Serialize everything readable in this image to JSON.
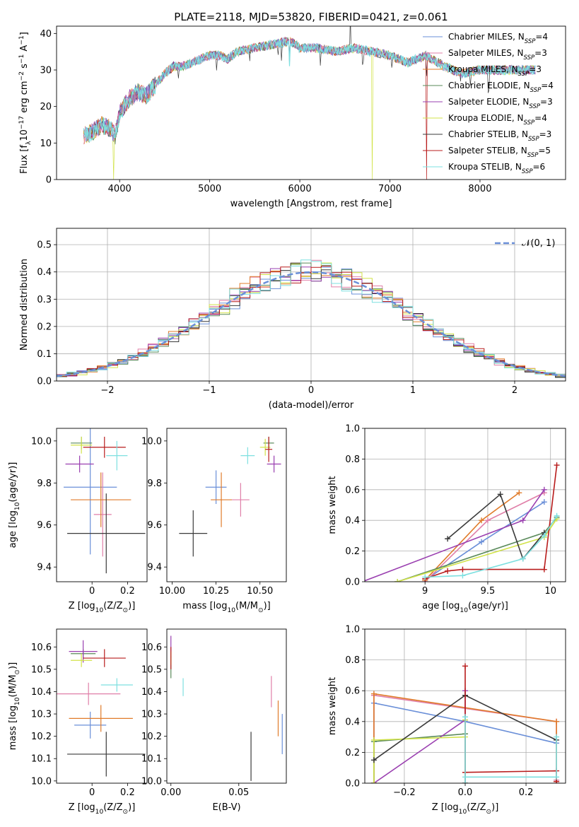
{
  "title": "PLATE=2118, MJD=53820, FIBERID=0421, z=0.061",
  "colors": {
    "Chabrier MILES": "#6a8fd8",
    "Salpeter MILES": "#e07fa8",
    "Kroupa MILES": "#e07b2a",
    "Chabrier ELODIE": "#5a8a5a",
    "Salpeter ELODIE": "#9a3fb0",
    "Kroupa ELODIE": "#d2e34a",
    "Chabrier STELIB": "#3a3a3a",
    "Salpeter STELIB": "#b81c1c",
    "Kroupa STELIB": "#7ee0e0"
  },
  "chart_data": [
    {
      "id": "spectrum",
      "type": "line",
      "xlabel": "wavelength [Angstrom, rest frame]",
      "ylabel_parts": [
        "Flux [f",
        "λ",
        "10",
        "−17",
        " erg cm",
        "−2",
        " s",
        "−1",
        " A",
        "−1",
        "]"
      ],
      "xlim": [
        3300,
        8950
      ],
      "ylim": [
        0,
        42
      ],
      "xticks": [
        4000,
        5000,
        6000,
        7000,
        8000
      ],
      "yticks": [
        0,
        10,
        20,
        30,
        40
      ],
      "legend": [
        {
          "name": "Chabrier MILES",
          "base": "Chabrier MILES, N",
          "sub": "SSP",
          "tail": "=4"
        },
        {
          "name": "Salpeter MILES",
          "base": "Salpeter MILES, N",
          "sub": "SSP",
          "tail": "=3"
        },
        {
          "name": "Kroupa MILES",
          "base": "Kroupa MILES, N",
          "sub": "SSP",
          "tail": "=3"
        },
        {
          "name": "Chabrier ELODIE",
          "base": "Chabrier ELODIE, N",
          "sub": "SSP",
          "tail": "=4"
        },
        {
          "name": "Salpeter ELODIE",
          "base": "Salpeter ELODIE, N",
          "sub": "SSP",
          "tail": "=3"
        },
        {
          "name": "Kroupa ELODIE",
          "base": "Kroupa ELODIE, N",
          "sub": "SSP",
          "tail": "=4"
        },
        {
          "name": "Chabrier STELIB",
          "base": "Chabrier STELIB, N",
          "sub": "SSP",
          "tail": "=3"
        },
        {
          "name": "Salpeter STELIB",
          "base": "Salpeter STELIB, N",
          "sub": "SSP",
          "tail": "=5"
        },
        {
          "name": "Kroupa STELIB",
          "base": "Kroupa STELIB, N",
          "sub": "SSP",
          "tail": "=6"
        }
      ],
      "continuum": [
        [
          3600,
          12
        ],
        [
          3700,
          13
        ],
        [
          3800,
          15
        ],
        [
          3900,
          14
        ],
        [
          3950,
          12
        ],
        [
          4000,
          18
        ],
        [
          4100,
          22
        ],
        [
          4200,
          24
        ],
        [
          4300,
          23
        ],
        [
          4400,
          26
        ],
        [
          4500,
          29
        ],
        [
          4600,
          31
        ],
        [
          4700,
          31
        ],
        [
          4800,
          32
        ],
        [
          4900,
          33
        ],
        [
          5000,
          34
        ],
        [
          5100,
          34
        ],
        [
          5200,
          33
        ],
        [
          5300,
          35
        ],
        [
          5500,
          36
        ],
        [
          5700,
          37
        ],
        [
          5900,
          38
        ],
        [
          6000,
          36
        ],
        [
          6200,
          36
        ],
        [
          6400,
          35
        ],
        [
          6600,
          36
        ],
        [
          6800,
          35
        ],
        [
          7000,
          34
        ],
        [
          7200,
          32
        ],
        [
          7400,
          34
        ],
        [
          7600,
          31
        ],
        [
          7800,
          29
        ],
        [
          8000,
          30
        ],
        [
          8200,
          30
        ],
        [
          8400,
          30
        ],
        [
          8600,
          30
        ]
      ],
      "notes": [
        "narrow dips near 3930, 5890, 6800, 7400; emission spike near 6560"
      ]
    },
    {
      "id": "residuals",
      "type": "step",
      "xlabel": "(data-model)/error",
      "ylabel": "Normed distribution",
      "xlim": [
        -2.5,
        2.5
      ],
      "ylim": [
        0,
        0.56
      ],
      "xticks": [
        -2,
        -1,
        0,
        1,
        2
      ],
      "xtick_labels": [
        "−2",
        "−1",
        "0",
        "1",
        "2"
      ],
      "yticks": [
        0.0,
        0.1,
        0.2,
        0.3,
        0.4,
        0.5
      ],
      "legend": [
        {
          "name": "N(0,1)",
          "text": "𝒩(0, 1)",
          "style": "dashed"
        }
      ],
      "bin_width": 0.1,
      "reference": "gaussian mean 0 sigma 1"
    },
    {
      "id": "age_vs_Z",
      "type": "errorbar",
      "xlabel_parts": [
        "Z [log",
        "10",
        "(Z/Z",
        "⊙",
        ")]"
      ],
      "ylabel_parts": [
        "age  [log",
        "10",
        "(age/yr)]"
      ],
      "xlim": [
        -0.2,
        0.31
      ],
      "ylim": [
        9.33,
        10.06
      ],
      "xticks": [
        0.0,
        0.2
      ],
      "yticks": [
        9.4,
        9.6,
        9.8,
        10.0
      ],
      "points": [
        {
          "model": "Chabrier MILES",
          "x": -0.01,
          "xerr": 0.15,
          "y": 9.78,
          "yerr": 0.32
        },
        {
          "model": "Salpeter MILES",
          "x": 0.06,
          "xerr": 0.05,
          "y": 9.65,
          "yerr": 0.2
        },
        {
          "model": "Kroupa MILES",
          "x": 0.05,
          "xerr": 0.17,
          "y": 9.72,
          "yerr": 0.13
        },
        {
          "model": "Chabrier ELODIE",
          "x": -0.06,
          "xerr": 0.06,
          "y": 9.99,
          "yerr": 0.03
        },
        {
          "model": "Salpeter ELODIE",
          "x": -0.07,
          "xerr": 0.08,
          "y": 9.89,
          "yerr": 0.04
        },
        {
          "model": "Kroupa ELODIE",
          "x": -0.06,
          "xerr": 0.06,
          "y": 9.98,
          "yerr": 0.04
        },
        {
          "model": "Chabrier STELIB",
          "x": 0.08,
          "xerr": 0.22,
          "y": 9.56,
          "yerr": 0.19
        },
        {
          "model": "Salpeter STELIB",
          "x": 0.07,
          "xerr": 0.12,
          "y": 9.97,
          "yerr": 0.05
        },
        {
          "model": "Kroupa STELIB",
          "x": 0.14,
          "xerr": 0.06,
          "y": 9.93,
          "yerr": 0.07
        }
      ]
    },
    {
      "id": "age_vs_mass",
      "type": "errorbar",
      "xlabel_parts": [
        "mass [log",
        "10",
        "(M/M",
        "⊙",
        ")]"
      ],
      "xlim": [
        9.97,
        10.65
      ],
      "ylim": [
        9.33,
        10.06
      ],
      "xticks": [
        10.0,
        10.25,
        10.5
      ],
      "xtick_labels": [
        "10.00",
        "10.25",
        "10.50"
      ],
      "yticks": [
        9.4,
        9.6,
        9.8,
        10.0
      ],
      "points": [
        {
          "model": "Chabrier MILES",
          "x": 10.25,
          "xerr": 0.06,
          "y": 9.78,
          "yerr": 0.08
        },
        {
          "model": "Salpeter MILES",
          "x": 10.39,
          "xerr": 0.05,
          "y": 9.72,
          "yerr": 0.08
        },
        {
          "model": "Kroupa MILES",
          "x": 10.28,
          "xerr": 0.06,
          "y": 9.72,
          "yerr": 0.13
        },
        {
          "model": "Chabrier ELODIE",
          "x": 10.55,
          "xerr": 0.03,
          "y": 9.99,
          "yerr": 0.03
        },
        {
          "model": "Salpeter ELODIE",
          "x": 10.58,
          "xerr": 0.04,
          "y": 9.89,
          "yerr": 0.04
        },
        {
          "model": "Kroupa ELODIE",
          "x": 10.53,
          "xerr": 0.03,
          "y": 9.97,
          "yerr": 0.04
        },
        {
          "model": "Chabrier STELIB",
          "x": 10.12,
          "xerr": 0.08,
          "y": 9.56,
          "yerr": 0.11
        },
        {
          "model": "Salpeter STELIB",
          "x": 10.55,
          "xerr": 0.02,
          "y": 9.96,
          "yerr": 0.06
        },
        {
          "model": "Kroupa STELIB",
          "x": 10.43,
          "xerr": 0.04,
          "y": 9.93,
          "yerr": 0.04
        }
      ]
    },
    {
      "id": "mass_weight_vs_age",
      "type": "line",
      "xlabel_parts": [
        "age  [log",
        "10",
        "(age/yr)]"
      ],
      "ylabel": "mass weight",
      "xlim": [
        8.52,
        10.12
      ],
      "ylim": [
        0,
        1
      ],
      "xticks": [
        9.0,
        9.5,
        10.0
      ],
      "yticks": [
        0.0,
        0.2,
        0.4,
        0.6,
        0.8,
        1.0
      ],
      "series": [
        {
          "model": "Chabrier MILES",
          "points": [
            [
              9.0,
              0.01
            ],
            [
              9.45,
              0.26
            ],
            [
              9.95,
              0.52
            ]
          ]
        },
        {
          "model": "Salpeter MILES",
          "points": [
            [
              9.0,
              0.0
            ],
            [
              9.5,
              0.4
            ],
            [
              9.95,
              0.58
            ]
          ]
        },
        {
          "model": "Kroupa MILES",
          "points": [
            [
              9.0,
              0.01
            ],
            [
              9.45,
              0.4
            ],
            [
              9.75,
              0.58
            ]
          ]
        },
        {
          "model": "Chabrier ELODIE",
          "points": [
            [
              8.78,
              0.0
            ],
            [
              9.95,
              0.32
            ],
            [
              10.05,
              0.42
            ]
          ]
        },
        {
          "model": "Salpeter ELODIE",
          "points": [
            [
              8.5,
              0.0
            ],
            [
              9.78,
              0.4
            ],
            [
              9.95,
              0.6
            ]
          ]
        },
        {
          "model": "Kroupa ELODIE",
          "points": [
            [
              8.78,
              0.0
            ],
            [
              9.95,
              0.29
            ],
            [
              10.05,
              0.41
            ]
          ]
        },
        {
          "model": "Chabrier STELIB",
          "points": [
            [
              9.18,
              0.28
            ],
            [
              9.6,
              0.57
            ],
            [
              9.78,
              0.15
            ],
            [
              9.95,
              0.32
            ]
          ]
        },
        {
          "model": "Salpeter STELIB",
          "points": [
            [
              9.0,
              0.02
            ],
            [
              9.18,
              0.07
            ],
            [
              9.3,
              0.08
            ],
            [
              9.95,
              0.08
            ],
            [
              10.05,
              0.76
            ]
          ]
        },
        {
          "model": "Kroupa STELIB",
          "points": [
            [
              9.0,
              0.03
            ],
            [
              9.3,
              0.04
            ],
            [
              9.78,
              0.15
            ],
            [
              9.95,
              0.3
            ],
            [
              10.05,
              0.43
            ]
          ]
        }
      ]
    },
    {
      "id": "mass_vs_Z",
      "type": "errorbar",
      "xlabel_parts": [
        "Z [log",
        "10",
        "(Z/Z",
        "⊙",
        ")]"
      ],
      "ylabel_parts": [
        "mass [log",
        "10",
        "(M/M",
        "⊙",
        ")]"
      ],
      "xlim": [
        -0.2,
        0.31
      ],
      "ylim": [
        9.99,
        10.68
      ],
      "xticks": [
        0.0,
        0.2
      ],
      "yticks": [
        10.0,
        10.1,
        10.2,
        10.3,
        10.4,
        10.5,
        10.6
      ],
      "points": [
        {
          "model": "Chabrier MILES",
          "x": -0.01,
          "xerr": 0.09,
          "y": 10.25,
          "yerr": 0.06
        },
        {
          "model": "Salpeter MILES",
          "x": -0.02,
          "xerr": 0.18,
          "y": 10.39,
          "yerr": 0.05
        },
        {
          "model": "Kroupa MILES",
          "x": 0.05,
          "xerr": 0.18,
          "y": 10.28,
          "yerr": 0.06
        },
        {
          "model": "Chabrier ELODIE",
          "x": -0.05,
          "xerr": 0.07,
          "y": 10.57,
          "yerr": 0.02
        },
        {
          "model": "Salpeter ELODIE",
          "x": -0.05,
          "xerr": 0.08,
          "y": 10.58,
          "yerr": 0.05
        },
        {
          "model": "Kroupa ELODIE",
          "x": -0.06,
          "xerr": 0.06,
          "y": 10.54,
          "yerr": 0.03
        },
        {
          "model": "Chabrier STELIB",
          "x": 0.08,
          "xerr": 0.22,
          "y": 10.12,
          "yerr": 0.1
        },
        {
          "model": "Salpeter STELIB",
          "x": 0.07,
          "xerr": 0.12,
          "y": 10.55,
          "yerr": 0.04
        },
        {
          "model": "Kroupa STELIB",
          "x": 0.14,
          "xerr": 0.09,
          "y": 10.43,
          "yerr": 0.03
        }
      ]
    },
    {
      "id": "mass_vs_EBV",
      "type": "errorbar",
      "xlabel": "E(B-V)",
      "xlim": [
        -0.003,
        0.085
      ],
      "ylim": [
        9.99,
        10.68
      ],
      "xticks": [
        0.0,
        0.05
      ],
      "xtick_labels": [
        "0.00",
        "0.05"
      ],
      "yticks": [
        10.0,
        10.1,
        10.2,
        10.3,
        10.4,
        10.5,
        10.6
      ],
      "points": [
        {
          "model": "Chabrier MILES",
          "x": 0.082,
          "xerr": 0,
          "y": 10.21,
          "yerr": 0.09
        },
        {
          "model": "Salpeter MILES",
          "x": 0.074,
          "xerr": 0,
          "y": 10.4,
          "yerr": 0.07
        },
        {
          "model": "Kroupa MILES",
          "x": 0.079,
          "xerr": 0,
          "y": 10.28,
          "yerr": 0.08
        },
        {
          "model": "Chabrier ELODIE",
          "x": 0.0,
          "xerr": 0,
          "y": 10.51,
          "yerr": 0.05
        },
        {
          "model": "Salpeter ELODIE",
          "x": 0.0,
          "xerr": 0,
          "y": 10.6,
          "yerr": 0.05
        },
        {
          "model": "Kroupa ELODIE",
          "x": 0.0,
          "xerr": 0,
          "y": 10.55,
          "yerr": 0.03
        },
        {
          "model": "Chabrier STELIB",
          "x": 0.059,
          "xerr": 0,
          "y": 10.11,
          "yerr": 0.11
        },
        {
          "model": "Salpeter STELIB",
          "x": 0.0,
          "xerr": 0,
          "y": 10.55,
          "yerr": 0.05
        },
        {
          "model": "Kroupa STELIB",
          "x": 0.009,
          "xerr": 0,
          "y": 10.42,
          "yerr": 0.04
        }
      ]
    },
    {
      "id": "mass_weight_vs_Z",
      "type": "line",
      "xlabel_parts": [
        "Z [log",
        "10",
        "(Z/Z",
        "⊙",
        ")]"
      ],
      "ylabel": "mass weight",
      "xlim": [
        -0.33,
        0.33
      ],
      "ylim": [
        0,
        1
      ],
      "xticks": [
        -0.2,
        0.0,
        0.2
      ],
      "xtick_labels": [
        "−0.2",
        "0.0",
        "0.2"
      ],
      "yticks": [
        0.0,
        0.2,
        0.4,
        0.6,
        0.8,
        1.0
      ],
      "series": [
        {
          "model": "Chabrier MILES",
          "points": [
            [
              -0.3,
              0.0
            ],
            [
              -0.3,
              0.52
            ],
            [
              0.0,
              0.4
            ],
            [
              0.3,
              0.26
            ],
            [
              0.3,
              0.02
            ]
          ]
        },
        {
          "model": "Salpeter MILES",
          "points": [
            [
              -0.3,
              0.0
            ],
            [
              -0.3,
              0.57
            ],
            [
              0.3,
              0.4
            ],
            [
              0.3,
              0.02
            ]
          ]
        },
        {
          "model": "Kroupa MILES",
          "points": [
            [
              -0.3,
              0.0
            ],
            [
              -0.3,
              0.58
            ],
            [
              0.3,
              0.4
            ],
            [
              0.3,
              0.01
            ]
          ]
        },
        {
          "model": "Chabrier ELODIE",
          "points": [
            [
              -0.3,
              0.0
            ],
            [
              -0.3,
              0.27
            ],
            [
              0.0,
              0.32
            ],
            [
              0.0,
              0.0
            ]
          ]
        },
        {
          "model": "Salpeter ELODIE",
          "points": [
            [
              -0.3,
              0.0
            ],
            [
              0.0,
              0.41
            ],
            [
              0.0,
              0.6
            ]
          ]
        },
        {
          "model": "Kroupa ELODIE",
          "points": [
            [
              -0.3,
              0.0
            ],
            [
              -0.3,
              0.28
            ],
            [
              0.0,
              0.3
            ],
            [
              0.0,
              0.41
            ]
          ]
        },
        {
          "model": "Chabrier STELIB",
          "points": [
            [
              -0.3,
              0.15
            ],
            [
              0.0,
              0.57
            ],
            [
              0.3,
              0.28
            ]
          ]
        },
        {
          "model": "Salpeter STELIB",
          "points": [
            [
              0.0,
              0.0
            ],
            [
              0.0,
              0.76
            ],
            [
              0.0,
              0.07
            ],
            [
              0.3,
              0.08
            ],
            [
              0.3,
              0.01
            ]
          ]
        },
        {
          "model": "Kroupa STELIB",
          "points": [
            [
              0.0,
              0.0
            ],
            [
              0.0,
              0.43
            ],
            [
              0.0,
              0.04
            ],
            [
              0.3,
              0.04
            ],
            [
              0.3,
              0.3
            ]
          ]
        }
      ]
    }
  ]
}
